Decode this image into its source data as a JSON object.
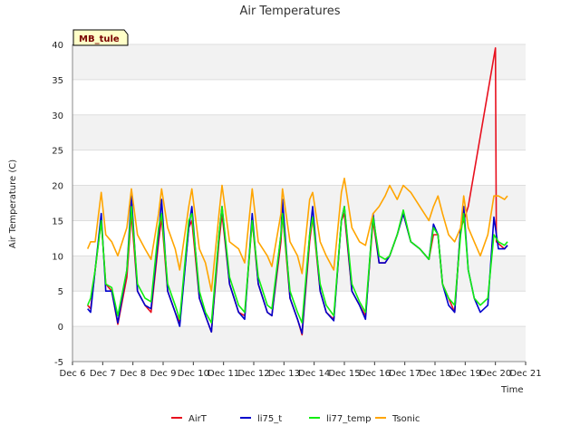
{
  "chart_data": {
    "type": "line",
    "title": "Air Temperatures",
    "xlabel": "Time",
    "ylabel": "Air Temperature (C)",
    "site_label": "MB_tule",
    "ylim": [
      -5,
      40
    ],
    "yticks": [
      -5,
      0,
      5,
      10,
      15,
      20,
      25,
      30,
      35,
      40
    ],
    "xlim": [
      6,
      21
    ],
    "xticks": [
      {
        "x": 6,
        "label": "Dec 6"
      },
      {
        "x": 7,
        "label": "Dec 7"
      },
      {
        "x": 8,
        "label": "Dec 8"
      },
      {
        "x": 9,
        "label": "Dec 9"
      },
      {
        "x": 10,
        "label": "Dec 10"
      },
      {
        "x": 11,
        "label": "Dec 11"
      },
      {
        "x": 12,
        "label": "Dec 12"
      },
      {
        "x": 13,
        "label": "Dec 13"
      },
      {
        "x": 14,
        "label": "Dec 14"
      },
      {
        "x": 15,
        "label": "Dec 15"
      },
      {
        "x": 16,
        "label": "Dec 16"
      },
      {
        "x": 17,
        "label": "Dec 17"
      },
      {
        "x": 18,
        "label": "Dec 18"
      },
      {
        "x": 19,
        "label": "Dec 19"
      },
      {
        "x": 20,
        "label": "Dec 20"
      },
      {
        "x": 21,
        "label": "Dec 21"
      }
    ],
    "grid": true,
    "legend_position": "bottom",
    "series": [
      {
        "name": "AirT",
        "color": "#e8101e",
        "points": [
          [
            6.5,
            3
          ],
          [
            6.6,
            2.5
          ],
          [
            6.75,
            8
          ],
          [
            6.95,
            15
          ],
          [
            7.1,
            6
          ],
          [
            7.3,
            5
          ],
          [
            7.5,
            0.3
          ],
          [
            7.8,
            7
          ],
          [
            7.95,
            16
          ],
          [
            8.15,
            5
          ],
          [
            8.4,
            3
          ],
          [
            8.6,
            2
          ],
          [
            8.85,
            12
          ],
          [
            8.95,
            15.5
          ],
          [
            9.15,
            5
          ],
          [
            9.4,
            2
          ],
          [
            9.55,
            0.5
          ],
          [
            9.85,
            14
          ],
          [
            9.95,
            15
          ],
          [
            10.2,
            4
          ],
          [
            10.4,
            1.5
          ],
          [
            10.6,
            -0.8
          ],
          [
            10.85,
            12
          ],
          [
            10.95,
            16
          ],
          [
            11.2,
            6
          ],
          [
            11.5,
            2
          ],
          [
            11.7,
            1.5
          ],
          [
            11.95,
            15
          ],
          [
            12.15,
            6
          ],
          [
            12.45,
            2
          ],
          [
            12.6,
            1.5
          ],
          [
            12.9,
            12
          ],
          [
            12.95,
            16
          ],
          [
            13.2,
            4
          ],
          [
            13.45,
            1
          ],
          [
            13.6,
            -1.2
          ],
          [
            13.85,
            12
          ],
          [
            13.95,
            15.5
          ],
          [
            14.2,
            5
          ],
          [
            14.4,
            2
          ],
          [
            14.65,
            1
          ],
          [
            14.9,
            15
          ],
          [
            15.0,
            16
          ],
          [
            15.25,
            5
          ],
          [
            15.5,
            3
          ],
          [
            15.7,
            1.5
          ],
          [
            15.95,
            15
          ],
          [
            16.15,
            9
          ],
          [
            16.35,
            9
          ],
          [
            16.5,
            10
          ],
          [
            16.75,
            13
          ],
          [
            16.95,
            16
          ],
          [
            17.2,
            12
          ],
          [
            17.5,
            11
          ],
          [
            17.8,
            9.5
          ],
          [
            17.95,
            13
          ],
          [
            18.1,
            13
          ],
          [
            18.25,
            6
          ],
          [
            18.45,
            4
          ],
          [
            18.65,
            2
          ],
          [
            18.85,
            14
          ],
          [
            18.95,
            15
          ],
          [
            19.1,
            17
          ],
          [
            20.0,
            39.5
          ],
          [
            20.03,
            12
          ],
          [
            20.3,
            11
          ],
          [
            20.4,
            11.5
          ]
        ]
      },
      {
        "name": "li75_t",
        "color": "#0000cc",
        "points": [
          [
            6.5,
            2.5
          ],
          [
            6.6,
            2
          ],
          [
            6.75,
            8
          ],
          [
            6.95,
            16
          ],
          [
            7.1,
            5
          ],
          [
            7.3,
            5
          ],
          [
            7.5,
            0.5
          ],
          [
            7.8,
            8
          ],
          [
            7.95,
            18.5
          ],
          [
            8.15,
            5
          ],
          [
            8.4,
            3
          ],
          [
            8.6,
            2.5
          ],
          [
            8.85,
            13
          ],
          [
            8.95,
            18
          ],
          [
            9.15,
            5
          ],
          [
            9.4,
            2
          ],
          [
            9.55,
            0
          ],
          [
            9.85,
            14
          ],
          [
            9.95,
            17
          ],
          [
            10.2,
            4
          ],
          [
            10.4,
            1.5
          ],
          [
            10.6,
            -0.8
          ],
          [
            10.85,
            13
          ],
          [
            10.95,
            17
          ],
          [
            11.2,
            6
          ],
          [
            11.5,
            2
          ],
          [
            11.7,
            1
          ],
          [
            11.95,
            16
          ],
          [
            12.15,
            6
          ],
          [
            12.45,
            2
          ],
          [
            12.6,
            1.5
          ],
          [
            12.9,
            13
          ],
          [
            12.95,
            18
          ],
          [
            13.2,
            4
          ],
          [
            13.45,
            1
          ],
          [
            13.6,
            -1
          ],
          [
            13.85,
            13
          ],
          [
            13.95,
            17
          ],
          [
            14.2,
            5
          ],
          [
            14.4,
            2
          ],
          [
            14.65,
            0.8
          ],
          [
            14.9,
            15
          ],
          [
            15.0,
            17
          ],
          [
            15.25,
            5
          ],
          [
            15.5,
            3
          ],
          [
            15.7,
            1
          ],
          [
            15.95,
            16
          ],
          [
            16.15,
            9
          ],
          [
            16.35,
            9
          ],
          [
            16.5,
            10
          ],
          [
            16.75,
            13
          ],
          [
            16.95,
            16
          ],
          [
            17.2,
            12
          ],
          [
            17.5,
            11
          ],
          [
            17.8,
            9.5
          ],
          [
            17.95,
            14.5
          ],
          [
            18.1,
            13
          ],
          [
            18.25,
            6
          ],
          [
            18.45,
            3
          ],
          [
            18.65,
            2
          ],
          [
            18.85,
            14
          ],
          [
            18.95,
            17
          ],
          [
            19.1,
            8
          ],
          [
            19.3,
            4
          ],
          [
            19.5,
            2
          ],
          [
            19.75,
            3
          ],
          [
            19.95,
            15.5
          ],
          [
            20.1,
            11
          ],
          [
            20.3,
            11
          ],
          [
            20.4,
            11.5
          ]
        ]
      },
      {
        "name": "li77_temp",
        "color": "#11ee11",
        "points": [
          [
            6.5,
            3
          ],
          [
            6.6,
            4
          ],
          [
            6.75,
            8
          ],
          [
            6.95,
            15
          ],
          [
            7.1,
            6
          ],
          [
            7.3,
            5.5
          ],
          [
            7.5,
            1.5
          ],
          [
            7.8,
            8
          ],
          [
            7.95,
            17
          ],
          [
            8.15,
            6
          ],
          [
            8.4,
            4
          ],
          [
            8.6,
            3.5
          ],
          [
            8.85,
            14
          ],
          [
            8.95,
            16
          ],
          [
            9.15,
            6
          ],
          [
            9.4,
            3
          ],
          [
            9.55,
            1
          ],
          [
            9.85,
            15
          ],
          [
            9.95,
            16
          ],
          [
            10.2,
            5
          ],
          [
            10.4,
            2
          ],
          [
            10.6,
            0.5
          ],
          [
            10.85,
            13
          ],
          [
            10.95,
            17
          ],
          [
            11.2,
            7
          ],
          [
            11.5,
            3
          ],
          [
            11.7,
            2
          ],
          [
            11.95,
            15
          ],
          [
            12.15,
            7
          ],
          [
            12.45,
            3
          ],
          [
            12.6,
            2.5
          ],
          [
            12.9,
            13
          ],
          [
            12.95,
            16
          ],
          [
            13.2,
            5
          ],
          [
            13.45,
            2
          ],
          [
            13.6,
            0.5
          ],
          [
            13.85,
            13
          ],
          [
            13.95,
            15.5
          ],
          [
            14.2,
            6
          ],
          [
            14.4,
            3
          ],
          [
            14.65,
            1.5
          ],
          [
            14.9,
            15
          ],
          [
            15.0,
            17
          ],
          [
            15.25,
            6
          ],
          [
            15.5,
            3.5
          ],
          [
            15.7,
            2
          ],
          [
            15.95,
            15.5
          ],
          [
            16.15,
            10
          ],
          [
            16.35,
            9.5
          ],
          [
            16.5,
            10
          ],
          [
            16.75,
            13
          ],
          [
            16.95,
            16.5
          ],
          [
            17.2,
            12
          ],
          [
            17.5,
            11
          ],
          [
            17.8,
            9.5
          ],
          [
            17.95,
            14
          ],
          [
            18.1,
            13
          ],
          [
            18.25,
            6
          ],
          [
            18.45,
            4
          ],
          [
            18.65,
            3
          ],
          [
            18.85,
            13
          ],
          [
            18.95,
            16
          ],
          [
            19.1,
            8
          ],
          [
            19.3,
            4
          ],
          [
            19.5,
            3
          ],
          [
            19.75,
            4
          ],
          [
            19.95,
            13
          ],
          [
            20.1,
            12
          ],
          [
            20.3,
            11.5
          ],
          [
            20.4,
            12
          ]
        ]
      },
      {
        "name": "Tsonic",
        "color": "#ffa500",
        "points": [
          [
            6.5,
            11
          ],
          [
            6.6,
            12
          ],
          [
            6.75,
            12
          ],
          [
            6.95,
            19
          ],
          [
            7.1,
            13
          ],
          [
            7.3,
            12
          ],
          [
            7.5,
            10
          ],
          [
            7.8,
            14
          ],
          [
            7.95,
            19.5
          ],
          [
            8.15,
            13
          ],
          [
            8.4,
            11
          ],
          [
            8.6,
            9.5
          ],
          [
            8.85,
            16
          ],
          [
            8.95,
            19.5
          ],
          [
            9.15,
            14
          ],
          [
            9.4,
            11
          ],
          [
            9.55,
            8
          ],
          [
            9.85,
            17
          ],
          [
            9.95,
            19.5
          ],
          [
            10.2,
            11
          ],
          [
            10.4,
            9
          ],
          [
            10.6,
            5
          ],
          [
            10.85,
            16
          ],
          [
            10.95,
            20
          ],
          [
            11.2,
            12
          ],
          [
            11.5,
            11
          ],
          [
            11.7,
            9
          ],
          [
            11.95,
            19.5
          ],
          [
            12.15,
            12
          ],
          [
            12.45,
            10
          ],
          [
            12.6,
            8.5
          ],
          [
            12.9,
            16
          ],
          [
            12.95,
            19.5
          ],
          [
            13.2,
            12
          ],
          [
            13.45,
            10
          ],
          [
            13.6,
            7.5
          ],
          [
            13.85,
            18
          ],
          [
            13.95,
            19
          ],
          [
            14.2,
            12
          ],
          [
            14.4,
            10
          ],
          [
            14.65,
            8
          ],
          [
            14.9,
            19
          ],
          [
            15.0,
            21
          ],
          [
            15.25,
            14
          ],
          [
            15.5,
            12
          ],
          [
            15.7,
            11.5
          ],
          [
            15.95,
            16
          ],
          [
            16.15,
            17
          ],
          [
            16.35,
            18.5
          ],
          [
            16.5,
            20
          ],
          [
            16.75,
            18
          ],
          [
            16.95,
            20
          ],
          [
            17.2,
            19
          ],
          [
            17.5,
            17
          ],
          [
            17.8,
            15
          ],
          [
            17.95,
            17
          ],
          [
            18.1,
            18.5
          ],
          [
            18.25,
            16
          ],
          [
            18.45,
            13
          ],
          [
            18.65,
            12
          ],
          [
            18.85,
            14
          ],
          [
            18.95,
            18.5
          ],
          [
            19.1,
            14
          ],
          [
            19.3,
            12
          ],
          [
            19.5,
            10
          ],
          [
            19.75,
            13
          ],
          [
            19.95,
            18.5
          ],
          [
            20.1,
            18.5
          ],
          [
            20.3,
            18
          ],
          [
            20.4,
            18.5
          ]
        ]
      }
    ]
  }
}
